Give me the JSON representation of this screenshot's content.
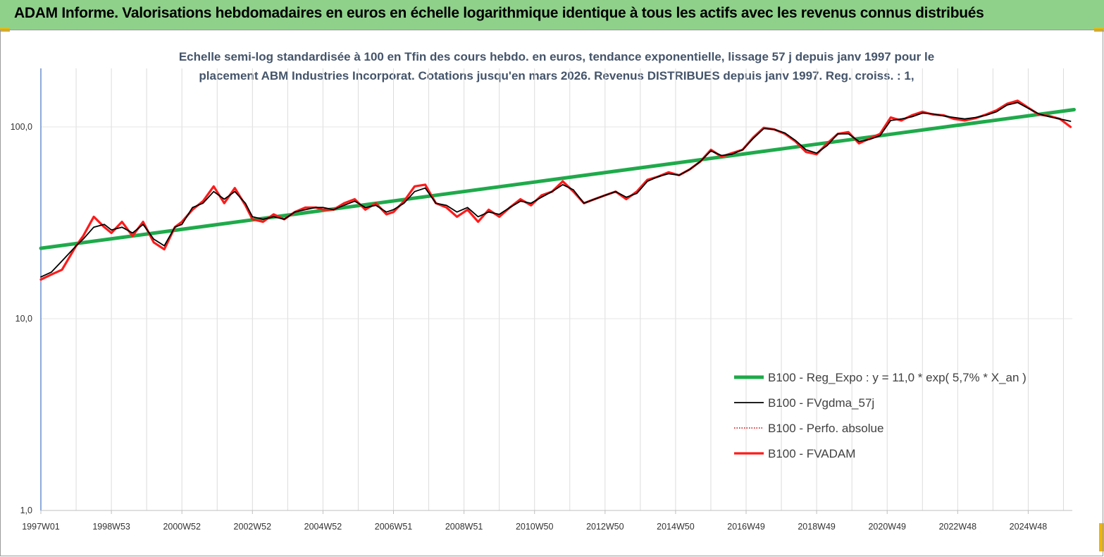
{
  "banner": {
    "title": "ADAM Informe. Valorisations hebdomadaires en euros en échelle logarithmique identique à tous les actifs avec les revenus connus distribués"
  },
  "chart_data": {
    "type": "line",
    "title_line1": "Echelle semi-log standardisée à 100 en Tfin des cours hebdo. en euros, tendance exponentielle, lissage 57 j depuis janv 1997 pour le",
    "title_line2": "placement ABM  Industries Incorporat. Cotations jusqu'en mars 2026. Revenus DISTRIBUES depuis janv 1997. Reg. croiss. : 1,",
    "y_scale": "log",
    "ylim": [
      1,
      200
    ],
    "y_ticks": [
      {
        "value": 1,
        "label": "1,0"
      },
      {
        "value": 10,
        "label": "10,0"
      },
      {
        "value": 100,
        "label": "100,0"
      }
    ],
    "xlim": [
      1997.0,
      2026.25
    ],
    "x_ticks": [
      {
        "t": 1997.0,
        "label": "1997W01"
      },
      {
        "t": 1999.0,
        "label": "1998W53"
      },
      {
        "t": 2001.0,
        "label": "2000W52"
      },
      {
        "t": 2003.0,
        "label": "2002W52"
      },
      {
        "t": 2005.0,
        "label": "2004W52"
      },
      {
        "t": 2007.0,
        "label": "2006W51"
      },
      {
        "t": 2009.0,
        "label": "2008W51"
      },
      {
        "t": 2011.0,
        "label": "2010W50"
      },
      {
        "t": 2013.0,
        "label": "2012W50"
      },
      {
        "t": 2015.0,
        "label": "2014W50"
      },
      {
        "t": 2017.0,
        "label": "2016W49"
      },
      {
        "t": 2019.0,
        "label": "2018W49"
      },
      {
        "t": 2021.0,
        "label": "2020W49"
      },
      {
        "t": 2023.0,
        "label": "2022W48"
      },
      {
        "t": 2025.0,
        "label": "2024W48"
      }
    ],
    "grid": "vertical",
    "legend_position": "bottom-right",
    "series": [
      {
        "name": "B100 - Reg_Expo : y = 11,0 * exp( 5,7% *  X_an )",
        "color": "#1faa4b",
        "style": "solid",
        "x": [
          1997.0,
          2026.3
        ],
        "y": [
          23.3,
          123.0
        ]
      },
      {
        "name": "B100 - FVgdma_57j",
        "color": "#000000",
        "style": "solid",
        "x": [
          1997.0,
          1997.3,
          1997.6,
          1998.0,
          1998.2,
          1998.5,
          1998.8,
          1999.0,
          1999.3,
          1999.6,
          1999.9,
          2000.2,
          2000.5,
          2000.8,
          2001.0,
          2001.3,
          2001.6,
          2001.9,
          2002.2,
          2002.5,
          2002.8,
          2003.0,
          2003.3,
          2003.6,
          2003.9,
          2004.2,
          2004.5,
          2004.8,
          2005.0,
          2005.3,
          2005.6,
          2005.9,
          2006.2,
          2006.5,
          2006.8,
          2007.0,
          2007.3,
          2007.6,
          2007.9,
          2008.2,
          2008.5,
          2008.8,
          2009.1,
          2009.4,
          2009.7,
          2010.0,
          2010.3,
          2010.6,
          2010.9,
          2011.2,
          2011.5,
          2011.8,
          2012.1,
          2012.4,
          2012.7,
          2013.0,
          2013.3,
          2013.6,
          2013.9,
          2014.2,
          2014.5,
          2014.8,
          2015.1,
          2015.4,
          2015.7,
          2016.0,
          2016.3,
          2016.6,
          2016.9,
          2017.2,
          2017.5,
          2017.8,
          2018.1,
          2018.4,
          2018.7,
          2019.0,
          2019.3,
          2019.6,
          2019.9,
          2020.2,
          2020.5,
          2020.8,
          2021.1,
          2021.4,
          2021.7,
          2022.0,
          2022.3,
          2022.6,
          2022.9,
          2023.2,
          2023.5,
          2023.8,
          2024.1,
          2024.4,
          2024.7,
          2025.0,
          2025.3,
          2025.6,
          2025.9,
          2026.2
        ],
        "y": [
          16.5,
          17.5,
          20,
          24,
          26,
          30,
          31,
          29,
          30,
          28,
          31,
          26,
          24,
          30,
          31,
          38,
          40,
          46,
          42,
          46,
          40,
          34,
          33,
          34,
          33,
          36,
          37,
          38,
          38,
          37,
          39,
          41,
          38,
          39,
          36,
          37,
          40,
          46,
          48,
          40,
          39,
          36,
          38,
          34,
          36,
          35,
          38,
          41,
          40,
          43,
          46,
          50,
          47,
          40,
          42,
          44,
          46,
          43,
          45,
          52,
          55,
          57,
          56,
          60,
          66,
          75,
          71,
          72,
          76,
          87,
          98,
          97,
          93,
          85,
          76,
          73,
          80,
          92,
          92,
          84,
          86,
          90,
          108,
          110,
          113,
          118,
          117,
          114,
          112,
          110,
          112,
          115,
          120,
          130,
          134,
          125,
          117,
          113,
          110,
          107
        ]
      },
      {
        "name": "B100 - Perfo. absolue",
        "color": "#d40000",
        "style": "dotted",
        "x": [
          1997.0,
          1997.3,
          1997.6,
          1998.0,
          1998.2,
          1998.5,
          1998.8,
          1999.0,
          1999.3,
          1999.6,
          1999.9,
          2000.2,
          2000.5,
          2000.8,
          2001.0,
          2001.3,
          2001.6,
          2001.9,
          2002.2,
          2002.5,
          2002.8,
          2003.0,
          2003.3,
          2003.6,
          2003.9,
          2004.2,
          2004.5,
          2004.8,
          2005.0,
          2005.3,
          2005.6,
          2005.9,
          2006.2,
          2006.5,
          2006.8,
          2007.0,
          2007.3,
          2007.6,
          2007.9,
          2008.2,
          2008.5,
          2008.8,
          2009.1,
          2009.4,
          2009.7,
          2010.0,
          2010.3,
          2010.6,
          2010.9,
          2011.2,
          2011.5,
          2011.8,
          2012.1,
          2012.4,
          2012.7,
          2013.0,
          2013.3,
          2013.6,
          2013.9,
          2014.2,
          2014.5,
          2014.8,
          2015.1,
          2015.4,
          2015.7,
          2016.0,
          2016.3,
          2016.6,
          2016.9,
          2017.2,
          2017.5,
          2017.8,
          2018.1,
          2018.4,
          2018.7,
          2019.0,
          2019.3,
          2019.6,
          2019.9,
          2020.2,
          2020.5,
          2020.8,
          2021.1,
          2021.4,
          2021.7,
          2022.0,
          2022.3,
          2022.6,
          2022.9,
          2023.2,
          2023.5,
          2023.8,
          2024.1,
          2024.4,
          2024.7,
          2025.0,
          2025.3,
          2025.6,
          2025.9,
          2026.2
        ],
        "y": [
          16,
          17,
          18,
          24,
          27,
          34,
          30,
          28,
          32,
          27,
          32,
          25,
          23,
          30,
          32,
          37,
          41,
          49,
          40,
          48,
          39,
          33,
          32,
          35,
          33,
          36,
          38,
          38,
          37,
          37,
          40,
          42,
          37,
          40,
          35,
          36,
          41,
          49,
          50,
          40,
          38,
          34,
          37,
          32,
          37,
          34,
          38,
          42,
          39,
          44,
          46,
          52,
          46,
          40,
          42,
          44,
          46,
          42,
          46,
          53,
          55,
          58,
          56,
          60,
          66,
          76,
          70,
          73,
          76,
          88,
          99,
          97,
          92,
          84,
          74,
          72,
          82,
          92,
          94,
          82,
          87,
          92,
          112,
          108,
          115,
          120,
          116,
          115,
          110,
          108,
          111,
          116,
          122,
          132,
          137,
          126,
          116,
          114,
          110,
          100
        ]
      },
      {
        "name": "B100 - FVADAM",
        "color": "#ff1a1a",
        "style": "solid",
        "x": [
          1997.0,
          1997.3,
          1997.6,
          1998.0,
          1998.2,
          1998.5,
          1998.8,
          1999.0,
          1999.3,
          1999.6,
          1999.9,
          2000.2,
          2000.5,
          2000.8,
          2001.0,
          2001.3,
          2001.6,
          2001.9,
          2002.2,
          2002.5,
          2002.8,
          2003.0,
          2003.3,
          2003.6,
          2003.9,
          2004.2,
          2004.5,
          2004.8,
          2005.0,
          2005.3,
          2005.6,
          2005.9,
          2006.2,
          2006.5,
          2006.8,
          2007.0,
          2007.3,
          2007.6,
          2007.9,
          2008.2,
          2008.5,
          2008.8,
          2009.1,
          2009.4,
          2009.7,
          2010.0,
          2010.3,
          2010.6,
          2010.9,
          2011.2,
          2011.5,
          2011.8,
          2012.1,
          2012.4,
          2012.7,
          2013.0,
          2013.3,
          2013.6,
          2013.9,
          2014.2,
          2014.5,
          2014.8,
          2015.1,
          2015.4,
          2015.7,
          2016.0,
          2016.3,
          2016.6,
          2016.9,
          2017.2,
          2017.5,
          2017.8,
          2018.1,
          2018.4,
          2018.7,
          2019.0,
          2019.3,
          2019.6,
          2019.9,
          2020.2,
          2020.5,
          2020.8,
          2021.1,
          2021.4,
          2021.7,
          2022.0,
          2022.3,
          2022.6,
          2022.9,
          2023.2,
          2023.5,
          2023.8,
          2024.1,
          2024.4,
          2024.7,
          2025.0,
          2025.3,
          2025.6,
          2025.9,
          2026.2
        ],
        "y": [
          16,
          17,
          18,
          24,
          27,
          34,
          30,
          28,
          32,
          27,
          32,
          25,
          23,
          30,
          32,
          37,
          41,
          49,
          40,
          48,
          39,
          33,
          32,
          35,
          33,
          36,
          38,
          38,
          37,
          37,
          40,
          42,
          37,
          40,
          35,
          36,
          41,
          49,
          50,
          40,
          38,
          34,
          37,
          32,
          37,
          34,
          38,
          42,
          39,
          44,
          46,
          52,
          46,
          40,
          42,
          44,
          46,
          42,
          46,
          53,
          55,
          58,
          56,
          60,
          66,
          76,
          70,
          73,
          76,
          88,
          99,
          97,
          92,
          84,
          74,
          72,
          82,
          92,
          94,
          82,
          87,
          92,
          112,
          108,
          115,
          120,
          116,
          115,
          110,
          108,
          111,
          116,
          122,
          132,
          137,
          126,
          116,
          114,
          110,
          100
        ]
      }
    ],
    "legend_order": [
      0,
      1,
      2,
      3
    ]
  }
}
